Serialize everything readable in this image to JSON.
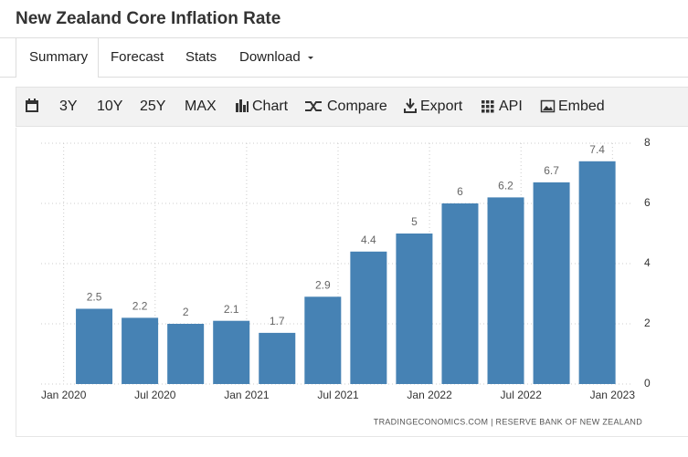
{
  "header": {
    "title": "New Zealand Core Inflation Rate"
  },
  "tabs": [
    "Summary",
    "Forecast",
    "Stats",
    "Download"
  ],
  "toolbar": [
    "3Y",
    "10Y",
    "25Y",
    "MAX",
    "Chart",
    "Compare",
    "Export",
    "API",
    "Embed"
  ],
  "chart_data": {
    "type": "bar",
    "x": [
      "2020-03",
      "2020-06",
      "2020-09",
      "2020-12",
      "2021-03",
      "2021-06",
      "2021-09",
      "2021-12",
      "2022-03",
      "2022-06",
      "2022-09",
      "2022-12"
    ],
    "values": [
      2.5,
      2.2,
      2,
      2.1,
      1.7,
      2.9,
      4.4,
      5,
      6,
      6.2,
      6.7,
      7.4
    ],
    "color": "#4682b4",
    "xlim": [
      "2019-12",
      "2023-02"
    ],
    "xticks": [
      {
        "value": "2020-01",
        "label": "Jan 2020"
      },
      {
        "value": "2020-07",
        "label": "Jul 2020"
      },
      {
        "value": "2021-01",
        "label": "Jan 2021"
      },
      {
        "value": "2021-07",
        "label": "Jul 2021"
      },
      {
        "value": "2022-01",
        "label": "Jan 2022"
      },
      {
        "value": "2022-07",
        "label": "Jul 2022"
      },
      {
        "value": "2023-01",
        "label": "Jan 2023"
      }
    ],
    "ylim": [
      0,
      8
    ],
    "yticks": [
      0,
      2,
      4,
      6,
      8
    ],
    "grid": true,
    "source": "TRADINGECONOMICS.COM | RESERVE BANK OF NEW ZEALAND"
  }
}
